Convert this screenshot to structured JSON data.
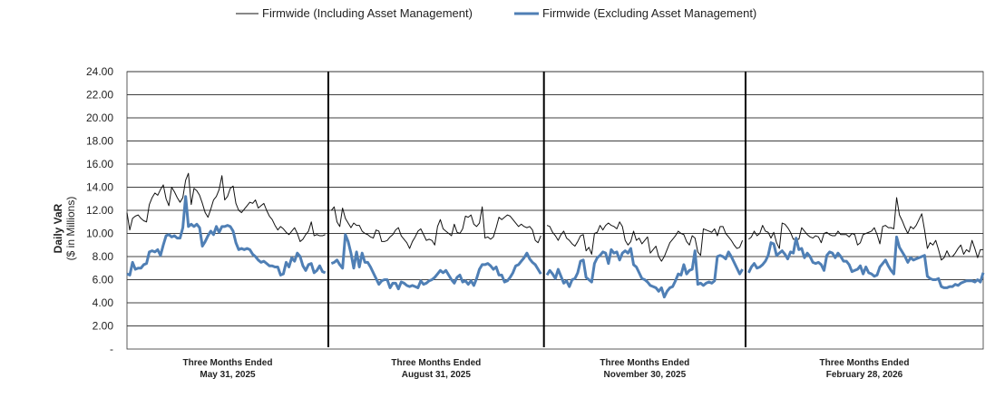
{
  "chart_data": {
    "type": "line",
    "ylabel": "Daily VaR",
    "ylabel_sub": "($ in Millions)",
    "ylim": [
      0,
      24
    ],
    "yticks": [
      0,
      2,
      4,
      6,
      8,
      10,
      12,
      14,
      16,
      18,
      20,
      22,
      24
    ],
    "ytick_labels": [
      "-",
      "2.00",
      "4.00",
      "6.00",
      "8.00",
      "10.00",
      "12.00",
      "14.00",
      "16.00",
      "18.00",
      "20.00",
      "22.00",
      "24.00"
    ],
    "grid": true,
    "legend_position": "top",
    "periods": [
      {
        "line1": "Three Months Ended",
        "line2": "May 31, 2025"
      },
      {
        "line1": "Three Months Ended",
        "line2": "August 31, 2025"
      },
      {
        "line1": "Three Months Ended",
        "line2": "November 30, 2025"
      },
      {
        "line1": "Three Months Ended",
        "line2": "February 28, 2026"
      }
    ],
    "series": [
      {
        "name": "Firmwide (Including Asset Management)",
        "color": "#111111",
        "style": "thin",
        "values": [
          [
            11.8,
            10.3,
            11.3,
            11.5,
            11.6,
            11.3,
            11.1,
            11.0,
            12.5,
            13.1,
            13.5,
            13.3,
            13.8,
            14.2,
            13.0,
            12.4,
            14.0,
            13.6,
            13.1,
            12.7,
            13.1,
            14.6,
            15.2,
            12.5,
            13.9,
            13.7,
            13.3,
            12.6,
            11.8,
            11.4,
            12.1,
            12.9,
            13.2,
            13.8,
            15.0,
            12.9,
            13.2,
            13.9,
            14.1,
            12.6,
            12.0,
            11.8,
            12.1,
            12.4,
            12.7,
            12.6,
            12.9,
            12.2,
            12.4,
            12.6,
            12.0,
            11.5,
            11.2,
            10.7,
            10.3,
            10.6,
            10.4,
            10.1,
            9.9,
            10.2,
            10.5,
            10.0,
            9.3,
            9.5,
            9.9,
            10.2,
            11.0,
            9.8,
            9.9,
            9.8,
            9.8,
            9.9
          ],
          [
            12.0,
            12.3,
            11.0,
            10.6,
            12.2,
            11.3,
            10.9,
            10.5,
            10.9,
            10.7,
            10.7,
            10.2,
            10.0,
            9.9,
            9.7,
            9.6,
            10.3,
            10.2,
            9.3,
            9.3,
            9.4,
            9.7,
            9.9,
            10.3,
            10.5,
            9.8,
            9.5,
            9.2,
            8.7,
            9.3,
            9.7,
            10.2,
            10.4,
            9.9,
            9.4,
            9.5,
            9.4,
            9.0,
            10.6,
            11.2,
            10.4,
            10.2,
            10.0,
            9.8,
            10.8,
            10.1,
            10.0,
            10.4,
            11.5,
            11.4,
            11.6,
            10.8,
            10.6,
            10.9,
            12.3,
            9.6,
            9.7,
            9.5,
            9.7,
            10.5,
            11.4,
            11.2,
            11.4,
            11.6,
            11.5,
            11.2,
            10.9,
            10.6,
            10.8,
            10.6,
            10.5,
            10.6,
            10.3,
            9.4,
            9.2,
            9.8
          ],
          [
            10.7,
            10.6,
            10.1,
            9.8,
            9.4,
            9.9,
            10.2,
            9.6,
            9.4,
            9.1,
            8.9,
            9.3,
            9.8,
            9.9,
            8.5,
            8.8,
            8.2,
            10.0,
            10.1,
            10.7,
            10.3,
            10.7,
            10.9,
            10.7,
            10.6,
            10.4,
            11.0,
            10.6,
            9.4,
            9.0,
            9.3,
            10.2,
            9.4,
            9.6,
            9.1,
            9.4,
            9.7,
            8.3,
            8.6,
            8.9,
            8.0,
            7.6,
            8.0,
            8.6,
            9.2,
            9.5,
            9.8,
            10.2,
            10.0,
            9.9,
            9.3,
            9.0,
            9.8,
            9.6,
            8.4,
            8.1,
            10.4,
            10.3,
            10.2,
            10.1,
            10.4,
            9.8,
            10.6,
            10.6,
            10.0,
            9.7,
            9.4,
            9.0,
            8.7,
            8.8,
            9.4
          ],
          [
            9.5,
            9.7,
            10.2,
            9.8,
            10.0,
            10.7,
            10.2,
            10.1,
            9.6,
            10.1,
            9.2,
            8.7,
            10.9,
            10.8,
            10.5,
            10.1,
            9.5,
            9.5,
            9.5,
            10.5,
            10.2,
            9.9,
            9.7,
            9.6,
            9.8,
            9.7,
            9.2,
            10.0,
            10.1,
            9.9,
            9.8,
            9.8,
            10.2,
            9.9,
            9.9,
            9.9,
            9.7,
            10.0,
            9.9,
            9.0,
            9.2,
            9.9,
            10.0,
            10.1,
            10.2,
            10.5,
            9.9,
            9.1,
            10.6,
            10.7,
            10.5,
            10.5,
            10.4,
            13.1,
            11.6,
            11.1,
            10.5,
            10.0,
            10.6,
            10.4,
            10.7,
            11.2,
            11.7,
            10.3,
            8.7,
            9.2,
            9.0,
            9.4,
            8.6,
            7.7,
            7.9,
            8.5,
            8.0,
            8.0,
            8.3,
            8.7,
            9.0,
            8.2,
            8.6,
            8.4,
            9.4,
            8.7,
            7.9,
            8.6,
            8.6
          ]
        ]
      },
      {
        "name": "Firmwide (Excluding Asset Management)",
        "color": "#4f7fb5",
        "style": "thick",
        "values": [
          [
            6.5,
            6.4,
            7.5,
            6.9,
            7.0,
            7.0,
            7.3,
            7.4,
            8.4,
            8.5,
            8.4,
            8.6,
            8.1,
            9.0,
            9.8,
            9.9,
            9.7,
            9.8,
            9.6,
            9.6,
            10.5,
            13.2,
            10.6,
            10.8,
            10.6,
            10.8,
            10.5,
            8.9,
            9.3,
            9.8,
            10.2,
            9.9,
            10.6,
            10.1,
            10.6,
            10.6,
            10.7,
            10.6,
            10.2,
            9.2,
            8.6,
            8.7,
            8.6,
            8.7,
            8.6,
            8.2,
            8.0,
            7.7,
            7.5,
            7.6,
            7.4,
            7.2,
            7.2,
            7.1,
            7.1,
            6.4,
            6.5,
            7.5,
            7.1,
            7.9,
            7.6,
            8.3,
            8.0,
            7.2,
            6.8,
            7.3,
            7.4,
            6.6,
            6.8,
            7.2,
            6.7,
            6.6
          ],
          [
            7.4,
            7.5,
            7.7,
            7.3,
            7.0,
            9.9,
            9.3,
            8.3,
            7.0,
            8.4,
            7.1,
            8.3,
            7.5,
            7.5,
            7.1,
            6.6,
            6.1,
            5.6,
            5.9,
            6.0,
            6.0,
            5.3,
            5.7,
            5.7,
            5.2,
            5.8,
            5.7,
            5.5,
            5.4,
            5.5,
            5.4,
            5.3,
            5.9,
            5.6,
            5.7,
            5.9,
            6.0,
            6.2,
            6.5,
            6.8,
            6.6,
            6.8,
            6.4,
            6.0,
            5.7,
            6.2,
            6.4,
            5.8,
            5.9,
            5.6,
            5.9,
            5.5,
            6.1,
            6.9,
            7.3,
            7.3,
            7.4,
            7.2,
            6.9,
            7.1,
            6.4,
            6.4,
            5.8,
            5.9,
            6.2,
            6.6,
            7.2,
            7.3,
            7.6,
            7.9,
            8.3,
            7.8,
            7.5,
            7.3,
            6.9,
            6.5
          ],
          [
            6.4,
            6.8,
            6.5,
            6.1,
            6.9,
            6.3,
            5.7,
            5.9,
            5.4,
            6.0,
            6.1,
            6.6,
            7.6,
            7.7,
            6.2,
            6.0,
            5.8,
            7.4,
            7.9,
            8.1,
            8.4,
            8.3,
            7.4,
            8.6,
            8.3,
            8.4,
            7.7,
            8.3,
            8.5,
            8.3,
            8.7,
            7.3,
            7.1,
            6.6,
            6.1,
            6.0,
            5.8,
            5.5,
            5.4,
            5.3,
            5.0,
            5.3,
            4.5,
            5.0,
            5.3,
            5.4,
            5.9,
            6.5,
            6.4,
            7.3,
            6.5,
            6.8,
            6.9,
            8.5,
            5.6,
            5.7,
            5.5,
            5.7,
            5.8,
            5.7,
            5.9,
            8.0,
            8.1,
            8.0,
            7.8,
            8.4,
            8.0,
            7.5,
            7.0,
            6.5,
            6.9
          ],
          [
            6.6,
            7.1,
            7.4,
            7.0,
            7.1,
            7.3,
            7.6,
            8.1,
            9.2,
            9.1,
            8.1,
            8.3,
            8.5,
            8.2,
            7.8,
            8.4,
            8.3,
            9.6,
            8.6,
            8.7,
            7.9,
            8.3,
            8.0,
            7.5,
            7.4,
            7.5,
            7.3,
            6.8,
            8.1,
            8.4,
            8.3,
            7.9,
            8.3,
            8.0,
            7.6,
            7.6,
            7.3,
            6.7,
            6.8,
            6.9,
            7.2,
            6.5,
            7.1,
            6.6,
            6.5,
            6.3,
            6.4,
            7.1,
            7.4,
            7.7,
            7.2,
            6.8,
            6.5,
            9.7,
            8.8,
            8.4,
            8.0,
            7.5,
            7.9,
            7.7,
            7.8,
            7.9,
            8.0,
            8.1,
            6.3,
            6.1,
            6.0,
            6.0,
            6.1,
            5.4,
            5.3,
            5.3,
            5.4,
            5.4,
            5.6,
            5.5,
            5.7,
            5.8,
            5.9,
            5.9,
            5.9,
            5.8,
            6.0,
            5.8,
            6.6
          ]
        ]
      }
    ]
  }
}
